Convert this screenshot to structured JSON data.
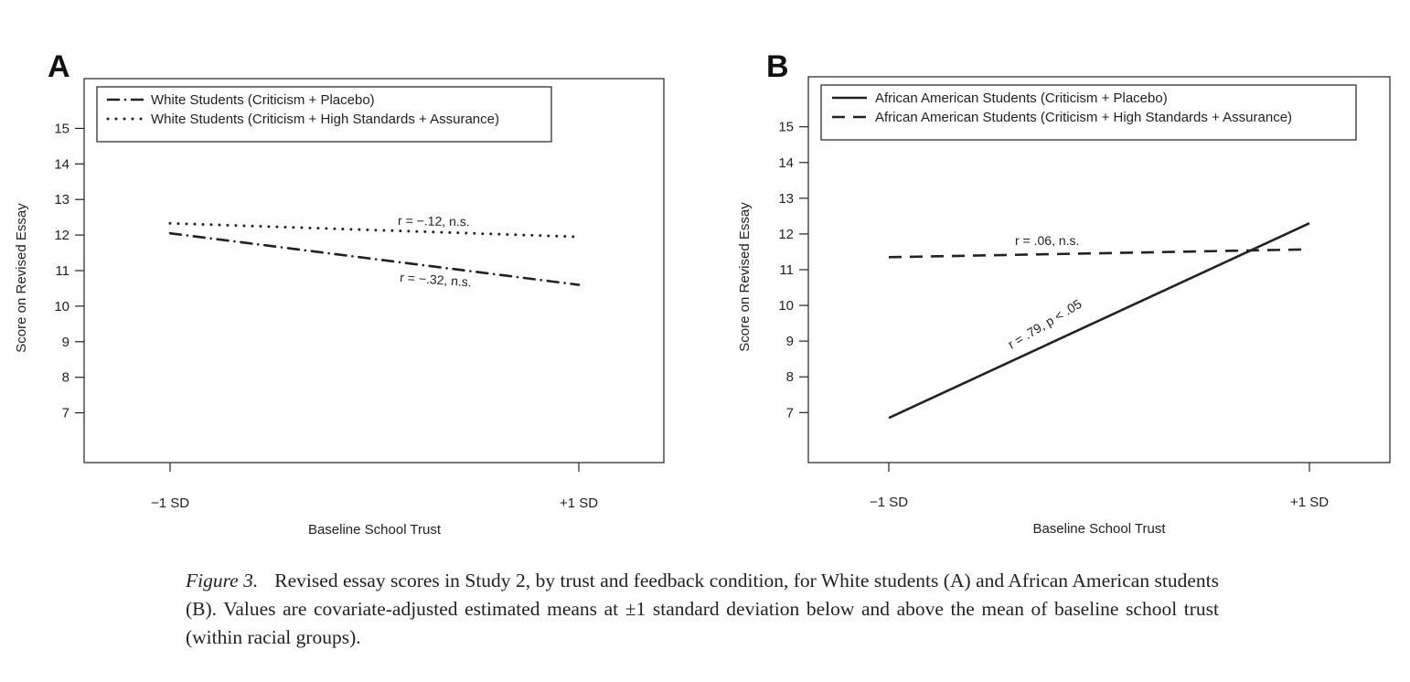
{
  "chart_data": [
    {
      "type": "line",
      "panel": "A",
      "xlabel": "Baseline School Trust",
      "ylabel": "Score on Revised Essay",
      "categories": [
        "−1 SD",
        "+1 SD"
      ],
      "yticks": [
        7,
        8,
        9,
        10,
        11,
        12,
        13,
        14,
        15
      ],
      "ylim": [
        5.6,
        16.4
      ],
      "legend_position": "top-left",
      "grid": false,
      "series": [
        {
          "name": "White Students (Criticism + Placebo)",
          "values": [
            12.05,
            10.6
          ],
          "style": "dashdot",
          "annotation": "r = −.32, n.s."
        },
        {
          "name": "White Students (Criticism + High Standards + Assurance)",
          "values": [
            12.33,
            11.95
          ],
          "style": "dotted",
          "annotation": "r = −.12, n.s."
        }
      ]
    },
    {
      "type": "line",
      "panel": "B",
      "xlabel": "Baseline School Trust",
      "ylabel": "Score on Revised Essay",
      "categories": [
        "−1 SD",
        "+1 SD"
      ],
      "yticks": [
        7,
        8,
        9,
        10,
        11,
        12,
        13,
        14,
        15
      ],
      "ylim": [
        5.6,
        16.4
      ],
      "legend_position": "top-left",
      "grid": false,
      "series": [
        {
          "name": "African American Students (Criticism + Placebo)",
          "values": [
            6.85,
            12.3
          ],
          "style": "solid",
          "annotation": "r = .79, p < .05"
        },
        {
          "name": "African American Students (Criticism + High Standards + Assurance)",
          "values": [
            11.35,
            11.57
          ],
          "style": "dashed",
          "annotation": "r = .06, n.s."
        }
      ]
    }
  ],
  "caption": {
    "label": "Figure 3.",
    "text": "Revised essay scores in Study 2, by trust and feedback condition, for White students (A) and African American students (B). Values are covariate-adjusted estimated means at ±1 standard deviation below and above the mean of baseline school trust (within racial groups)."
  }
}
